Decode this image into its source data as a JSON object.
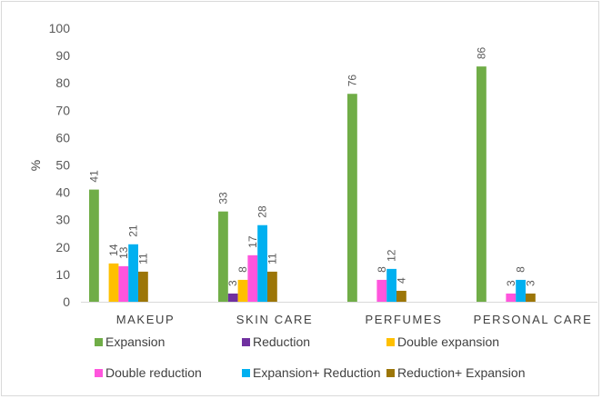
{
  "chart_data": {
    "type": "bar",
    "title": "",
    "xlabel": "",
    "ylabel": "%",
    "ylim": [
      0,
      100
    ],
    "yticks": [
      0,
      10,
      20,
      30,
      40,
      50,
      60,
      70,
      80,
      90,
      100
    ],
    "grid": false,
    "legend_position": "bottom",
    "categories": [
      "MAKEUP",
      "SKIN CARE",
      "PERFUMES",
      "PERSONAL CARE"
    ],
    "series": [
      {
        "name": "Expansion",
        "color": "#70ad47",
        "values": [
          41,
          33,
          76,
          86
        ]
      },
      {
        "name": "Reduction",
        "color": "#7030a0",
        "values": [
          null,
          3,
          null,
          null
        ]
      },
      {
        "name": "Double expansion",
        "color": "#ffc000",
        "values": [
          14,
          8,
          null,
          null
        ]
      },
      {
        "name": "Double reduction",
        "color": "#ff55dd",
        "values": [
          13,
          17,
          8,
          3
        ]
      },
      {
        "name": "Expansion+ Reduction",
        "color": "#00b0f0",
        "values": [
          21,
          28,
          12,
          8
        ]
      },
      {
        "name": "Reduction+ Expansion",
        "color": "#9c7608",
        "values": [
          11,
          11,
          4,
          3
        ]
      }
    ]
  }
}
